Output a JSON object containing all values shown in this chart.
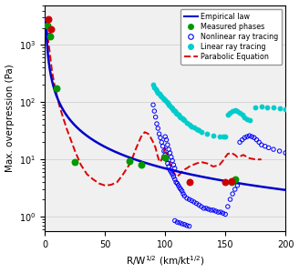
{
  "title": "",
  "xlabel": "R/W$^{1/2}$ (km/kt$^{1/2}$)",
  "ylabel": "Max. overpression (Pa)",
  "xlim": [
    0,
    200
  ],
  "ylim_log": [
    0.55,
    5000
  ],
  "empirical_law_color": "#0000CC",
  "empirical_law_label": "Empirical law",
  "empirical_A": 2200,
  "empirical_b": 1.25,
  "parabolic_color": "#DD0000",
  "parabolic_label": "Parabolic Equation",
  "parabolic_x": [
    0.5,
    1.0,
    1.5,
    2.0,
    3.0,
    4.0,
    5.0,
    6.0,
    8.0,
    10.0,
    12.0,
    15.0,
    18.0,
    20.0,
    25.0,
    30.0,
    35.0,
    40.0,
    45.0,
    50.0,
    55.0,
    60.0,
    65.0,
    70.0,
    73.0,
    76.0,
    78.0,
    80.0,
    83.0,
    86.0,
    88.0,
    90.0,
    92.0,
    93.0,
    94.0,
    95.0,
    96.0,
    97.0,
    98.0,
    99.0,
    100.0,
    102.0,
    104.0,
    106.0,
    108.0,
    110.0,
    112.0,
    115.0,
    118.0,
    120.0,
    123.0,
    126.0,
    130.0,
    135.0,
    140.0,
    145.0,
    148.0,
    150.0,
    152.0,
    155.0,
    158.0,
    160.0,
    163.0,
    165.0,
    168.0,
    170.0,
    175.0,
    180.0
  ],
  "parabolic_y": [
    3000,
    2500,
    2000,
    1600,
    1100,
    750,
    500,
    340,
    200,
    130,
    88,
    55,
    35,
    27,
    14,
    8.0,
    5.5,
    4.5,
    3.8,
    3.5,
    3.6,
    4.0,
    5.5,
    8.0,
    11.0,
    16.0,
    20.0,
    25.0,
    30.0,
    28.0,
    24.0,
    20.0,
    16.0,
    13.0,
    11.0,
    9.5,
    9.0,
    10.0,
    12.0,
    14.0,
    16.0,
    12.0,
    8.5,
    6.5,
    5.5,
    5.0,
    5.5,
    6.5,
    7.0,
    7.5,
    8.0,
    8.5,
    9.0,
    8.5,
    7.5,
    8.0,
    9.5,
    11.0,
    12.5,
    13.0,
    12.0,
    11.0,
    11.5,
    12.0,
    11.0,
    10.5,
    10.0,
    10.0
  ],
  "nonlinear_color": "#0000FF",
  "nonlinear_label": "Nonlinear ray tracing",
  "nonlinear_x": [
    2.0,
    4.0,
    90.0,
    91.0,
    92.0,
    93.0,
    94.0,
    95.0,
    96.0,
    97.0,
    98.0,
    99.0,
    100.0,
    101.0,
    102.0,
    103.0,
    104.0,
    105.0,
    106.0,
    107.0,
    108.0,
    109.0,
    110.0,
    111.0,
    112.0,
    113.0,
    114.0,
    115.0,
    100.0,
    101.0,
    102.0,
    103.0,
    104.0,
    105.0,
    106.0,
    107.0,
    108.0,
    116.0,
    118.0,
    120.0,
    122.0,
    124.0,
    126.0,
    128.0,
    130.0,
    132.0,
    134.0,
    136.0,
    138.0,
    140.0,
    142.0,
    144.0,
    146.0,
    148.0,
    150.0,
    152.0,
    154.0,
    156.0,
    158.0,
    160.0,
    162.0,
    164.0,
    166.0,
    168.0,
    170.0,
    172.0,
    174.0,
    176.0,
    178.0,
    180.0,
    183.0,
    186.0,
    190.0,
    195.0,
    200.0,
    108.0,
    110.0,
    112.0,
    114.0,
    116.0,
    118.0,
    120.0
  ],
  "nonlinear_y": [
    2200.0,
    1500.0,
    90.0,
    70.0,
    55.0,
    42.0,
    35.0,
    28.0,
    24.0,
    20.0,
    17.0,
    14.0,
    12.0,
    10.0,
    8.5,
    7.5,
    6.5,
    6.0,
    5.5,
    5.0,
    4.5,
    4.0,
    3.8,
    3.5,
    3.2,
    3.0,
    2.8,
    2.5,
    25.0,
    22.0,
    18.0,
    15.0,
    13.0,
    11.0,
    9.5,
    8.0,
    7.0,
    2.3,
    2.1,
    2.0,
    1.9,
    1.8,
    1.7,
    1.6,
    1.5,
    1.4,
    1.4,
    1.35,
    1.3,
    1.3,
    1.25,
    1.2,
    1.2,
    1.15,
    1.1,
    1.5,
    2.0,
    2.5,
    3.0,
    3.5,
    20.0,
    22.0,
    24.0,
    25.0,
    26.0,
    25.0,
    24.0,
    22.0,
    20.0,
    18.0,
    17.0,
    16.0,
    15.0,
    14.0,
    13.0,
    0.85,
    0.8,
    0.78,
    0.75,
    0.73,
    0.7,
    0.68
  ],
  "linear_color": "#00CCCC",
  "linear_label": "Linear ray tracing",
  "linear_x": [
    90.0,
    91.0,
    92.0,
    93.0,
    94.0,
    95.0,
    96.0,
    97.0,
    98.0,
    99.0,
    100.0,
    101.0,
    102.0,
    103.0,
    104.0,
    105.0,
    106.0,
    107.0,
    108.0,
    109.0,
    110.0,
    111.0,
    112.0,
    113.0,
    114.0,
    115.0,
    116.0,
    118.0,
    120.0,
    122.0,
    124.0,
    126.0,
    128.0,
    130.0,
    135.0,
    140.0,
    145.0,
    148.0,
    150.0,
    152.0,
    154.0,
    156.0,
    158.0,
    160.0,
    162.0,
    164.0,
    166.0,
    168.0,
    170.0,
    175.0,
    180.0,
    185.0,
    190.0,
    195.0,
    200.0
  ],
  "linear_y": [
    200.0,
    185.0,
    170.0,
    158.0,
    148.0,
    140.0,
    132.0,
    125.0,
    118.0,
    112.0,
    108.0,
    102.0,
    96.0,
    91.0,
    86.0,
    82.0,
    78.0,
    74.0,
    70.0,
    66.0,
    63.0,
    60.0,
    57.0,
    54.0,
    52.0,
    50.0,
    48.0,
    44.0,
    41.0,
    38.0,
    36.0,
    34.0,
    32.0,
    30.0,
    28.0,
    26.0,
    25.0,
    25.0,
    25.0,
    60.0,
    65.0,
    70.0,
    72.0,
    70.0,
    65.0,
    60.0,
    55.0,
    50.0,
    48.0,
    80.0,
    85.0,
    82.0,
    80.0,
    78.0,
    75.0
  ],
  "measured_green_x": [
    2.0,
    4.0,
    10.0,
    25.0,
    70.0,
    80.0,
    100.0,
    155.0,
    158.0
  ],
  "measured_green_y": [
    2200.0,
    1400.0,
    175.0,
    9.0,
    9.5,
    8.0,
    11.0,
    4.0,
    4.5
  ],
  "measured_red_x": [
    2.5,
    5.0,
    120.0,
    150.0,
    155.0
  ],
  "measured_red_y": [
    2800.0,
    1900.0,
    4.0,
    4.0,
    4.2
  ],
  "measured_label": "Measured phases",
  "measured_green_color": "#009900",
  "measured_red_color": "#CC0000",
  "bg_color": "#f0f0f0",
  "legend_fontsize": 5.8,
  "tick_fontsize": 7,
  "label_fontsize": 7.5
}
